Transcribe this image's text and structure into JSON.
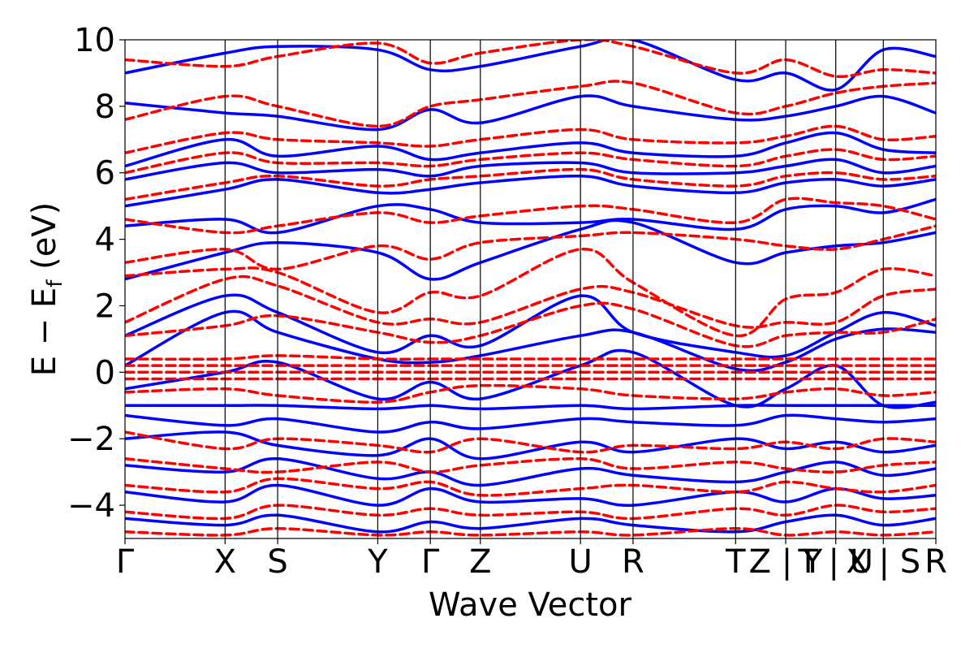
{
  "chart_data": {
    "type": "line",
    "title": "",
    "xlabel": "Wave Vector",
    "ylabel_main": "E − E",
    "ylabel_sub": "f",
    "ylabel_unit": " (eV)",
    "ylim": [
      -5,
      10
    ],
    "yticks": [
      {
        "value": -4,
        "label": "−4"
      },
      {
        "value": -2,
        "label": "−2"
      },
      {
        "value": 0,
        "label": "0"
      },
      {
        "value": 2,
        "label": "2"
      },
      {
        "value": 4,
        "label": "4"
      },
      {
        "value": 6,
        "label": "6"
      },
      {
        "value": 8,
        "label": "8"
      },
      {
        "value": 10,
        "label": "10"
      }
    ],
    "xlim": [
      0,
      16.2
    ],
    "kpoints": [
      {
        "x": 0.0,
        "label": "Γ"
      },
      {
        "x": 2.0,
        "label": "X"
      },
      {
        "x": 3.05,
        "label": "S"
      },
      {
        "x": 5.05,
        "label": "Y"
      },
      {
        "x": 6.1,
        "label": "Γ"
      },
      {
        "x": 7.1,
        "label": "Z"
      },
      {
        "x": 9.1,
        "label": "U"
      },
      {
        "x": 10.15,
        "label": "R"
      },
      {
        "x": 12.2,
        "label": "T"
      },
      {
        "x": 13.2,
        "label": "Z | Y"
      },
      {
        "x": 14.2,
        "label": "T | U"
      },
      {
        "x": 15.15,
        "label": "X | S"
      },
      {
        "x": 16.2,
        "label": "R"
      }
    ],
    "series": [
      {
        "style": "solid",
        "color": "#0000ff",
        "values": [
          [
            0,
            9.0,
            2,
            9.6,
            3.05,
            9.8,
            5.05,
            9.7,
            6.1,
            9.1,
            7.1,
            9.2,
            9.1,
            9.8,
            10.15,
            10.0,
            12.2,
            8.8,
            13.2,
            9.0,
            14.2,
            8.5,
            15.15,
            9.7,
            16.2,
            9.5
          ],
          [
            0,
            8.1,
            2,
            7.8,
            3.05,
            7.7,
            5.05,
            7.3,
            6.1,
            7.9,
            7.1,
            7.5,
            9.1,
            8.3,
            10.15,
            8.0,
            12.2,
            7.6,
            13.2,
            7.7,
            14.2,
            8.0,
            15.15,
            8.3,
            16.2,
            7.8
          ],
          [
            0,
            6.2,
            2,
            7.0,
            3.05,
            6.5,
            5.05,
            6.8,
            6.1,
            6.4,
            7.1,
            6.6,
            9.1,
            6.9,
            10.15,
            6.6,
            12.2,
            6.5,
            13.2,
            6.9,
            14.2,
            7.2,
            15.15,
            6.7,
            16.2,
            6.6
          ],
          [
            0,
            5.8,
            2,
            6.3,
            3.05,
            6.0,
            5.05,
            6.1,
            6.1,
            5.9,
            7.1,
            6.2,
            9.1,
            6.3,
            10.15,
            6.0,
            12.2,
            6.0,
            13.2,
            6.2,
            14.2,
            6.4,
            15.15,
            6.0,
            16.2,
            6.2
          ],
          [
            0,
            5.0,
            2,
            5.5,
            3.05,
            5.8,
            5.05,
            5.4,
            6.1,
            5.5,
            7.1,
            5.7,
            9.1,
            5.9,
            10.15,
            5.6,
            12.2,
            5.4,
            13.2,
            5.7,
            14.2,
            5.8,
            15.15,
            5.6,
            16.2,
            5.8
          ],
          [
            0,
            4.4,
            2,
            4.6,
            3.05,
            4.2,
            5.05,
            5.0,
            6.1,
            4.9,
            7.1,
            4.5,
            9.1,
            4.5,
            10.15,
            4.6,
            12.2,
            4.3,
            13.2,
            4.9,
            14.2,
            5.0,
            15.15,
            4.8,
            16.2,
            5.2
          ],
          [
            0,
            2.8,
            2,
            3.6,
            3.05,
            3.9,
            5.05,
            3.6,
            6.1,
            2.8,
            7.1,
            3.3,
            9.1,
            4.3,
            10.15,
            4.5,
            12.2,
            3.3,
            13.2,
            3.6,
            14.2,
            3.8,
            15.15,
            3.9,
            16.2,
            4.2
          ],
          [
            0,
            1.1,
            2,
            2.3,
            3.05,
            1.8,
            5.05,
            0.6,
            6.1,
            1.1,
            7.1,
            0.8,
            9.1,
            2.3,
            10.15,
            1.2,
            12.2,
            0.6,
            13.2,
            0.5,
            14.2,
            1.2,
            15.15,
            1.8,
            16.2,
            1.4
          ],
          [
            0,
            0.2,
            2,
            1.8,
            3.05,
            1.2,
            5.05,
            0.4,
            6.1,
            0.3,
            7.1,
            0.5,
            9.1,
            1.1,
            10.15,
            1.2,
            12.2,
            0.1,
            13.2,
            0.3,
            14.2,
            1.0,
            15.15,
            1.3,
            16.2,
            1.2
          ],
          [
            0,
            -0.5,
            2,
            0.0,
            3.05,
            0.3,
            5.05,
            -0.8,
            6.1,
            -0.3,
            7.1,
            -0.8,
            9.1,
            0.2,
            10.15,
            0.6,
            12.2,
            -1.0,
            13.2,
            -0.5,
            14.2,
            0.2,
            15.15,
            -1.0,
            16.2,
            -0.9
          ],
          [
            0,
            -1.0,
            2,
            -1.0,
            3.05,
            -1.0,
            5.05,
            -1.1,
            6.1,
            -1.0,
            7.1,
            -1.1,
            9.1,
            -1.0,
            10.15,
            -1.1,
            12.2,
            -1.0,
            13.2,
            -1.0,
            14.2,
            -1.0,
            15.15,
            -1.0,
            16.2,
            -1.0
          ],
          [
            0,
            -1.3,
            2,
            -1.6,
            3.05,
            -1.4,
            5.05,
            -1.8,
            6.1,
            -1.5,
            7.1,
            -1.7,
            9.1,
            -1.4,
            10.15,
            -1.5,
            12.2,
            -1.6,
            13.2,
            -1.3,
            14.2,
            -1.4,
            15.15,
            -1.5,
            16.2,
            -1.4
          ],
          [
            0,
            -2.0,
            2,
            -1.8,
            3.05,
            -2.2,
            5.05,
            -2.5,
            6.1,
            -2.0,
            7.1,
            -2.6,
            9.1,
            -2.1,
            10.15,
            -2.4,
            12.2,
            -2.0,
            13.2,
            -2.3,
            14.2,
            -2.1,
            15.15,
            -2.4,
            16.2,
            -2.2
          ],
          [
            0,
            -2.8,
            2,
            -3.0,
            3.05,
            -2.6,
            5.05,
            -3.2,
            6.1,
            -3.0,
            7.1,
            -3.4,
            9.1,
            -2.9,
            10.15,
            -3.1,
            12.2,
            -3.3,
            13.2,
            -3.0,
            14.2,
            -2.7,
            15.15,
            -3.1,
            16.2,
            -2.9
          ],
          [
            0,
            -3.6,
            2,
            -3.9,
            3.05,
            -3.4,
            5.05,
            -4.0,
            6.1,
            -3.5,
            7.1,
            -3.9,
            9.1,
            -3.8,
            10.15,
            -4.0,
            12.2,
            -3.6,
            13.2,
            -3.9,
            14.2,
            -3.5,
            15.15,
            -3.8,
            16.2,
            -3.7
          ],
          [
            0,
            -4.4,
            2,
            -4.6,
            3.05,
            -4.3,
            5.05,
            -4.8,
            6.1,
            -4.5,
            7.1,
            -4.7,
            9.1,
            -4.4,
            10.15,
            -4.6,
            12.2,
            -4.8,
            13.2,
            -4.5,
            14.2,
            -4.3,
            15.15,
            -4.6,
            16.2,
            -4.4
          ]
        ]
      },
      {
        "style": "dashed",
        "color": "#ff0000",
        "values": [
          [
            0,
            9.4,
            2,
            9.2,
            3.05,
            9.5,
            5.05,
            9.9,
            6.1,
            9.3,
            7.1,
            9.6,
            9.1,
            10.0,
            10.15,
            9.8,
            12.2,
            9.0,
            13.2,
            9.4,
            14.2,
            8.9,
            15.15,
            9.1,
            16.2,
            9.0
          ],
          [
            0,
            7.6,
            2,
            8.3,
            3.05,
            8.0,
            5.05,
            7.4,
            6.1,
            8.0,
            7.1,
            8.2,
            9.1,
            8.6,
            10.15,
            8.7,
            12.2,
            7.8,
            13.2,
            8.0,
            14.2,
            8.4,
            15.15,
            8.6,
            16.2,
            8.7
          ],
          [
            0,
            6.6,
            2,
            7.2,
            3.05,
            7.0,
            5.05,
            6.9,
            6.1,
            6.8,
            7.1,
            7.0,
            9.1,
            7.3,
            10.15,
            7.0,
            12.2,
            6.9,
            13.2,
            7.1,
            14.2,
            7.4,
            15.15,
            7.0,
            16.2,
            7.1
          ],
          [
            0,
            6.0,
            2,
            6.6,
            3.05,
            6.3,
            5.05,
            6.3,
            6.1,
            6.2,
            7.1,
            6.4,
            9.1,
            6.6,
            10.15,
            6.4,
            12.2,
            6.2,
            13.2,
            6.5,
            14.2,
            6.7,
            15.15,
            6.4,
            16.2,
            6.5
          ],
          [
            0,
            5.2,
            2,
            5.7,
            3.05,
            5.9,
            5.05,
            5.6,
            6.1,
            5.8,
            7.1,
            5.9,
            9.1,
            6.1,
            10.15,
            5.8,
            12.2,
            5.6,
            13.2,
            5.9,
            14.2,
            6.0,
            15.15,
            5.8,
            16.2,
            5.9
          ],
          [
            0,
            4.6,
            2,
            4.2,
            3.05,
            4.4,
            5.05,
            4.8,
            6.1,
            4.5,
            7.1,
            4.7,
            9.1,
            5.0,
            10.15,
            4.9,
            12.2,
            4.5,
            13.2,
            5.2,
            14.2,
            5.1,
            15.15,
            5.0,
            16.2,
            4.6
          ],
          [
            0,
            3.3,
            2,
            3.7,
            3.05,
            3.1,
            5.05,
            3.8,
            6.1,
            3.4,
            7.1,
            3.9,
            9.1,
            4.1,
            10.15,
            4.2,
            12.2,
            4.0,
            13.2,
            3.8,
            14.2,
            3.7,
            15.15,
            4.0,
            16.2,
            4.4
          ],
          [
            0,
            2.9,
            2,
            3.1,
            3.05,
            3.0,
            5.05,
            1.8,
            6.1,
            2.4,
            7.1,
            2.3,
            9.1,
            3.7,
            10.15,
            2.7,
            12.2,
            1.1,
            13.2,
            2.2,
            14.2,
            2.4,
            15.15,
            3.1,
            16.2,
            2.9
          ],
          [
            0,
            1.5,
            2,
            2.8,
            3.05,
            2.6,
            5.05,
            1.5,
            6.1,
            1.6,
            7.1,
            1.5,
            9.1,
            2.5,
            10.15,
            2.4,
            12.2,
            1.4,
            13.2,
            1.5,
            14.2,
            1.5,
            15.15,
            2.3,
            16.2,
            2.5
          ],
          [
            0,
            1.1,
            2,
            1.4,
            3.05,
            1.7,
            5.05,
            1.2,
            6.1,
            0.9,
            7.1,
            1.1,
            9.1,
            2.0,
            10.15,
            1.9,
            12.2,
            0.8,
            13.2,
            1.1,
            14.2,
            1.2,
            15.15,
            1.2,
            16.2,
            1.6
          ],
          [
            0,
            0.4,
            2,
            0.4,
            3.05,
            0.5,
            5.05,
            0.4,
            6.1,
            0.4,
            7.1,
            0.4,
            9.1,
            0.4,
            10.15,
            0.4,
            12.2,
            0.4,
            13.2,
            0.4,
            14.2,
            0.4,
            15.15,
            0.4,
            16.2,
            0.4
          ],
          [
            0,
            0.2,
            2,
            0.2,
            3.05,
            0.2,
            5.05,
            0.2,
            6.1,
            0.2,
            7.1,
            0.2,
            9.1,
            0.2,
            10.15,
            0.2,
            12.2,
            0.2,
            13.2,
            0.2,
            14.2,
            0.2,
            15.15,
            0.2,
            16.2,
            0.2
          ],
          [
            0,
            0.0,
            2,
            0.0,
            3.05,
            0.0,
            5.05,
            0.0,
            6.1,
            0.0,
            7.1,
            0.0,
            9.1,
            0.0,
            10.15,
            0.0,
            12.2,
            0.0,
            13.2,
            0.0,
            14.2,
            0.0,
            15.15,
            0.0,
            16.2,
            0.0
          ],
          [
            0,
            -0.2,
            2,
            -0.2,
            3.05,
            -0.2,
            5.05,
            -0.2,
            6.1,
            -0.2,
            7.1,
            -0.2,
            9.1,
            -0.2,
            10.15,
            -0.2,
            12.2,
            -0.2,
            13.2,
            -0.2,
            14.2,
            -0.2,
            15.15,
            -0.2,
            16.2,
            -0.2
          ],
          [
            0,
            -0.6,
            2,
            -0.5,
            3.05,
            -0.7,
            5.05,
            -0.9,
            6.1,
            -0.6,
            7.1,
            -0.4,
            9.1,
            -0.5,
            10.15,
            -0.7,
            12.2,
            -0.8,
            13.2,
            -0.6,
            14.2,
            -0.5,
            15.15,
            -0.7,
            16.2,
            -0.6
          ],
          [
            0,
            -1.8,
            2,
            -2.3,
            3.05,
            -2.0,
            5.05,
            -2.2,
            6.1,
            -2.4,
            7.1,
            -2.0,
            9.1,
            -2.4,
            10.15,
            -2.2,
            12.2,
            -2.3,
            13.2,
            -2.1,
            14.2,
            -2.3,
            15.15,
            -2.0,
            16.2,
            -2.1
          ],
          [
            0,
            -2.6,
            2,
            -2.9,
            3.05,
            -3.0,
            5.05,
            -2.7,
            6.1,
            -3.0,
            7.1,
            -2.8,
            9.1,
            -2.6,
            10.15,
            -2.9,
            12.2,
            -2.7,
            13.2,
            -2.9,
            14.2,
            -3.0,
            15.15,
            -2.8,
            16.2,
            -2.7
          ],
          [
            0,
            -3.4,
            2,
            -3.6,
            3.05,
            -3.2,
            5.05,
            -3.5,
            6.1,
            -3.3,
            7.1,
            -3.7,
            9.1,
            -3.5,
            10.15,
            -3.4,
            12.2,
            -3.6,
            13.2,
            -3.3,
            14.2,
            -3.5,
            15.15,
            -3.6,
            16.2,
            -3.4
          ],
          [
            0,
            -4.2,
            2,
            -4.4,
            3.05,
            -4.0,
            5.05,
            -4.3,
            6.1,
            -4.1,
            7.1,
            -4.3,
            9.1,
            -4.2,
            10.15,
            -4.4,
            12.2,
            -4.1,
            13.2,
            -4.3,
            14.2,
            -4.0,
            15.15,
            -4.2,
            16.2,
            -4.1
          ],
          [
            0,
            -4.8,
            2,
            -4.9,
            3.05,
            -4.7,
            5.05,
            -4.9,
            6.1,
            -4.8,
            7.1,
            -4.9,
            9.1,
            -4.8,
            10.15,
            -4.9,
            12.2,
            -4.7,
            13.2,
            -4.9,
            14.2,
            -4.8,
            15.15,
            -4.9,
            16.2,
            -4.8
          ]
        ]
      }
    ]
  }
}
